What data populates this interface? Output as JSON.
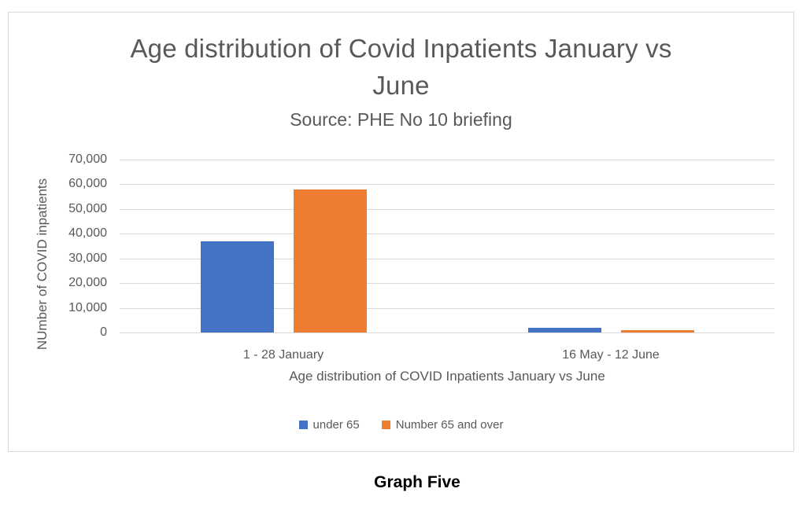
{
  "page": {
    "caption": "Graph Five"
  },
  "chart": {
    "title_lines": [
      "Age distribution of Covid Inpatients January vs",
      "June"
    ],
    "subtitle": "Source: PHE No 10 briefing",
    "y_axis_title": "NUmber of COVID inpatients",
    "x_axis_title": "Age distribution of COVID Inpatients January vs June"
  },
  "chart_data": {
    "type": "bar",
    "title": "Age distribution of Covid Inpatients January vs June",
    "subtitle": "Source: PHE No 10 briefing",
    "categories": [
      "1 - 28 January",
      "16 May - 12 June"
    ],
    "series": [
      {
        "name": "under 65",
        "color": "#4472C4",
        "values": [
          37000,
          2000
        ]
      },
      {
        "name": "Number 65 and over",
        "color": "#ED7D31",
        "values": [
          58000,
          1000
        ]
      }
    ],
    "xlabel": "Age distribution of COVID Inpatients January vs June",
    "ylabel": "NUmber of COVID inpatients",
    "ylim": [
      0,
      70000
    ],
    "ytick_step": 10000,
    "ytick_labels": [
      "0",
      "10,000",
      "20,000",
      "30,000",
      "40,000",
      "50,000",
      "60,000",
      "70,000"
    ],
    "grid": true,
    "legend_position": "bottom"
  },
  "colors": {
    "bar_blue": "#4472C4",
    "bar_orange": "#ED7D31",
    "gridline": "#D9D9D9",
    "chart_border": "#D9D9D9",
    "chart_text": "#595959",
    "caption_text": "#000000"
  }
}
